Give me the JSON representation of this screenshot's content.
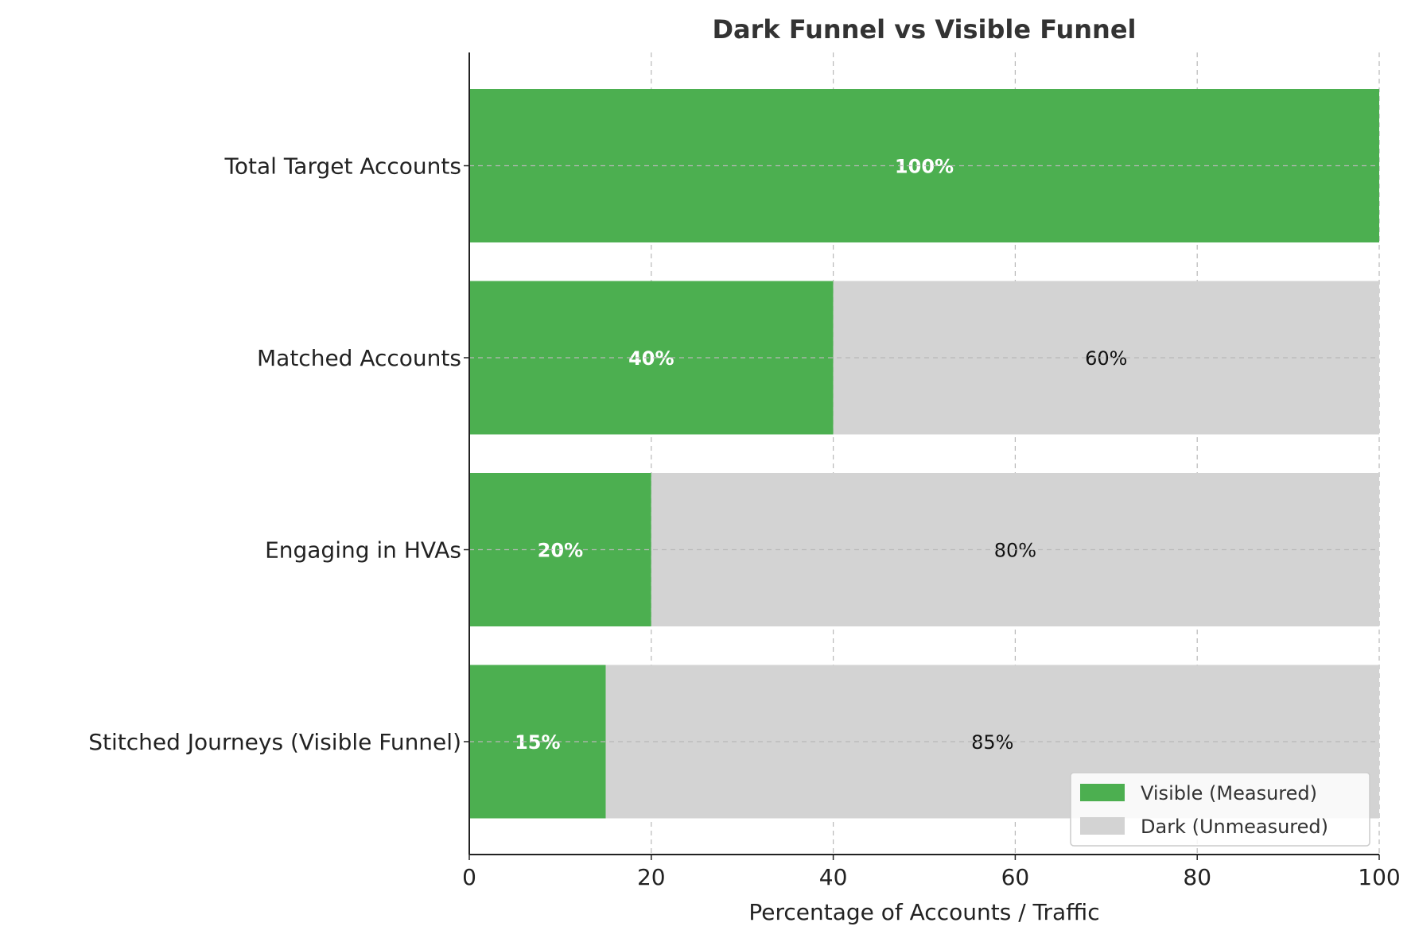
{
  "chart_data": {
    "type": "bar",
    "orientation": "horizontal",
    "stacked": true,
    "title": "Dark Funnel vs Visible Funnel",
    "xlabel": "Percentage of Accounts / Traffic",
    "ylabel": "",
    "xlim": [
      0,
      100
    ],
    "xticks": [
      "0",
      "20",
      "40",
      "60",
      "80",
      "100"
    ],
    "grid": true,
    "legend_position": "bottom-right",
    "categories": [
      "Total Target Accounts",
      "Matched Accounts",
      "Engaging in HVAs",
      "Stitched Journeys (Visible Funnel)"
    ],
    "series": [
      {
        "name": "Visible (Measured)",
        "color": "#4caf50",
        "values": [
          100,
          40,
          20,
          15
        ],
        "labels": [
          "100%",
          "40%",
          "20%",
          "15%"
        ]
      },
      {
        "name": "Dark (Unmeasured)",
        "color": "#d3d3d3",
        "values": [
          0,
          60,
          80,
          85
        ],
        "labels": [
          "",
          "60%",
          "80%",
          "85%"
        ]
      }
    ]
  }
}
